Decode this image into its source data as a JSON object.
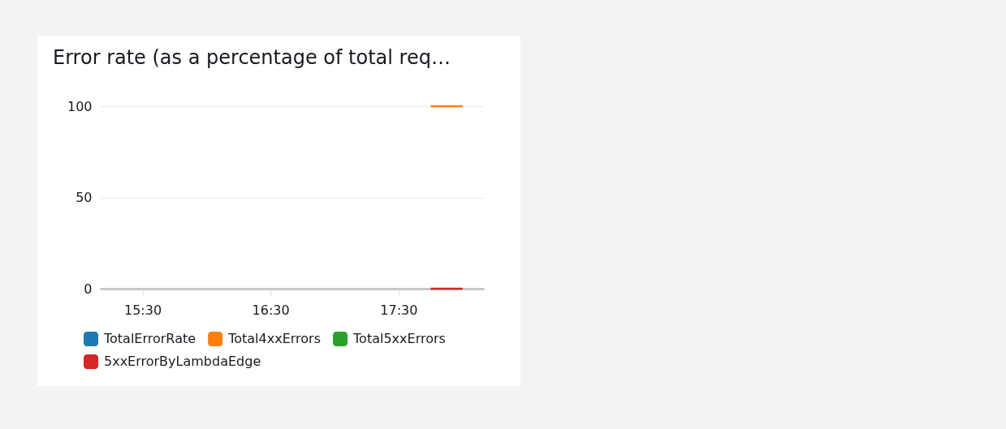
{
  "chart_data": {
    "type": "line",
    "title": "Error rate (as a percentage of total req…",
    "x": [
      17.75,
      18.0
    ],
    "xlim": [
      15.167,
      18.167
    ],
    "xticks": [
      {
        "value": 15.5,
        "label": "15:30"
      },
      {
        "value": 16.5,
        "label": "16:30"
      },
      {
        "value": 17.5,
        "label": "17:30"
      }
    ],
    "ylim": [
      0,
      100
    ],
    "yticks": [
      0,
      50,
      100
    ],
    "grid": "y",
    "legend": "bottom",
    "marker": "none",
    "line_style": "solid",
    "series": [
      {
        "name": "TotalErrorRate",
        "color": "#1f77b4",
        "values": [
          null,
          null
        ]
      },
      {
        "name": "Total4xxErrors",
        "color": "#ff7f0e",
        "values": [
          100,
          100
        ]
      },
      {
        "name": "Total5xxErrors",
        "color": "#2ca02c",
        "values": [
          null,
          null
        ]
      },
      {
        "name": "5xxErrorByLambdaEdge",
        "color": "#d62728",
        "values": [
          0,
          0
        ]
      }
    ]
  }
}
